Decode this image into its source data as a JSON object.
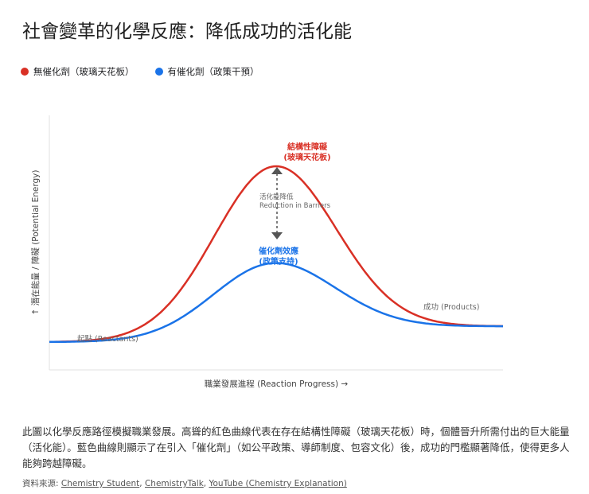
{
  "title": "社會變革的化學反應：降低成功的活化能",
  "legend": [
    {
      "label": "無催化劑（玻璃天花板）",
      "color": "#d93025"
    },
    {
      "label": "有催化劑（政策干預）",
      "color": "#1a73e8"
    }
  ],
  "chart_data": {
    "type": "line",
    "title": "",
    "xlabel": "職業發展進程 (Reaction Progress) →",
    "ylabel": "↑ 潛在能量 / 障礙 (Potential Energy)",
    "grid": false,
    "series": [
      {
        "name": "無催化劑（玻璃天花板）",
        "color": "#d93025",
        "start": 0,
        "peak": 100,
        "end": 9
      },
      {
        "name": "有催化劑（政策干預）",
        "color": "#1a73e8",
        "start": 0,
        "peak": 45,
        "end": 9
      }
    ],
    "annotations": {
      "red_peak": [
        "結構性障礙",
        "(玻璃天花板)"
      ],
      "blue_peak": [
        "催化劑效應",
        "(政策支持)"
      ],
      "arrow": [
        "活化能降低",
        "Reduction in Barriers"
      ],
      "start": "起點 (Reactants)",
      "end": "成功 (Products)"
    }
  },
  "description": "此圖以化學反應路徑模擬職業發展。高聳的紅色曲線代表在存在結構性障礙（玻璃天花板）時，個體晉升所需付出的巨大能量（活化能）。藍色曲線則顯示了在引入「催化劑」（如公平政策、導師制度、包容文化）後，成功的門檻顯著降低，使得更多人能夠跨越障礙。",
  "sources": {
    "prefix": "資料來源: ",
    "links": [
      "Chemistry Student",
      "ChemistryTalk",
      "YouTube (Chemistry Explanation)"
    ]
  }
}
